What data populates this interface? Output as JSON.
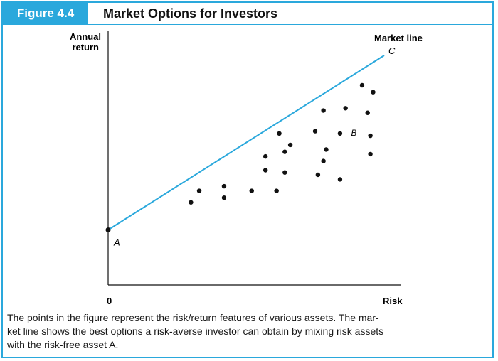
{
  "figure": {
    "label": "Figure 4.4",
    "title": "Market Options for Investors",
    "caption_lines": [
      "The points in the figure represent the risk/return features of various assets. The mar-",
      "ket line shows the best options a risk-averse investor can obtain by mixing risk assets",
      "with the risk-free asset A."
    ],
    "accent_color": "#2aa8dc"
  },
  "chart_data": {
    "type": "scatter",
    "ylabel": [
      "Annual",
      "return"
    ],
    "xlabel": "Risk",
    "origin_label": "0",
    "xlim": [
      0,
      100
    ],
    "ylim": [
      0,
      100
    ],
    "grid": false,
    "legend": "none",
    "market_line": {
      "name": "Market line",
      "start": {
        "x": 0,
        "y": 24,
        "label": "A"
      },
      "end": {
        "x": 100,
        "y": 100,
        "label": "C"
      },
      "color": "#2aa8dc"
    },
    "asset_B_label": {
      "x": 88,
      "y": 65,
      "text": "B"
    },
    "assets": [
      {
        "x": 30,
        "y": 36
      },
      {
        "x": 33,
        "y": 41
      },
      {
        "x": 42,
        "y": 43
      },
      {
        "x": 42,
        "y": 38
      },
      {
        "x": 52,
        "y": 41
      },
      {
        "x": 61,
        "y": 41
      },
      {
        "x": 57,
        "y": 56
      },
      {
        "x": 57,
        "y": 50
      },
      {
        "x": 64,
        "y": 49
      },
      {
        "x": 64,
        "y": 58
      },
      {
        "x": 62,
        "y": 66
      },
      {
        "x": 66,
        "y": 61
      },
      {
        "x": 75,
        "y": 67
      },
      {
        "x": 78,
        "y": 54
      },
      {
        "x": 76,
        "y": 48
      },
      {
        "x": 79,
        "y": 59
      },
      {
        "x": 78,
        "y": 76
      },
      {
        "x": 84,
        "y": 66
      },
      {
        "x": 86,
        "y": 77
      },
      {
        "x": 84,
        "y": 46
      },
      {
        "x": 94,
        "y": 75
      },
      {
        "x": 95,
        "y": 65
      },
      {
        "x": 95,
        "y": 57
      },
      {
        "x": 92,
        "y": 87
      },
      {
        "x": 96,
        "y": 84
      }
    ]
  }
}
